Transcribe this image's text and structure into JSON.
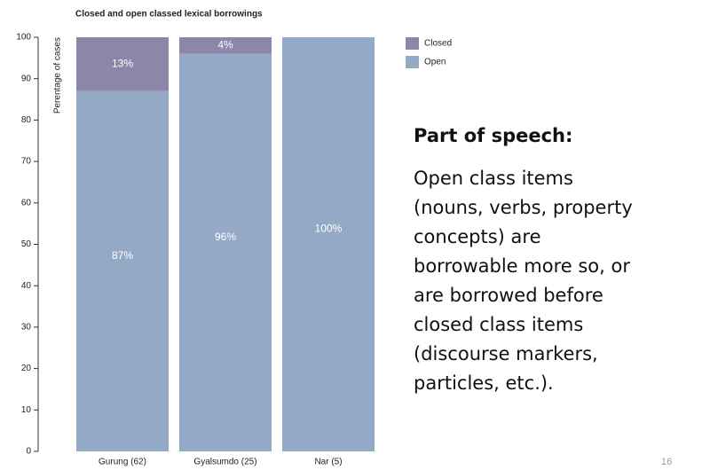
{
  "chart_data": {
    "type": "stacked_bar",
    "title": "Closed and open classed lexical borrowings",
    "ylabel": "Perentage of cases",
    "categories": [
      "Gurung (62)",
      "Gyalsumdo (25)",
      "Nar (5)"
    ],
    "series": [
      {
        "name": "Closed",
        "color": "#8c87a8",
        "values": [
          13,
          4,
          0
        ],
        "value_labels": [
          "13%",
          "4%",
          null
        ]
      },
      {
        "name": "Open",
        "color": "#94a9c6",
        "values": [
          87,
          96,
          100
        ],
        "value_labels": [
          "87%",
          "96%",
          "100%"
        ]
      }
    ],
    "ylim": [
      0,
      100
    ],
    "yticks": [
      0,
      10,
      20,
      30,
      40,
      50,
      60,
      70,
      80,
      90,
      100
    ],
    "grid": false
  },
  "slide": {
    "heading": "Part of speech:",
    "body_lines": [
      "Open class items",
      "(nouns, verbs, property",
      "concepts) are",
      "borrowable more so, or",
      "are borrowed before",
      "closed class items",
      "(discourse markers,",
      "particles, etc.)."
    ],
    "page_number": "16"
  }
}
